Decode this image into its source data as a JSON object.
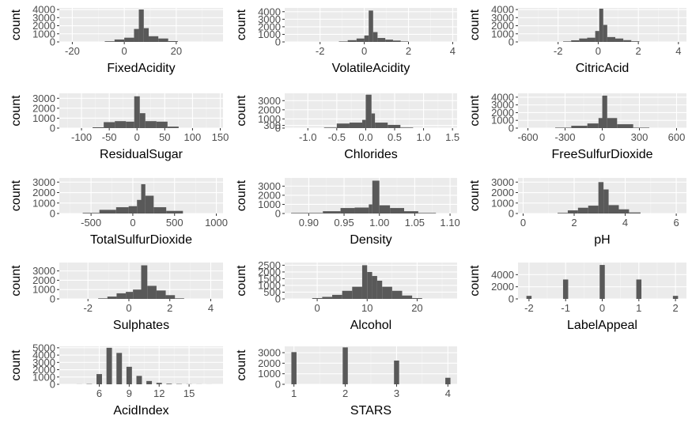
{
  "colors": {
    "panel_bg": "#ebebeb",
    "grid_major": "#ffffff",
    "bar": "#595959",
    "tick_text": "#4d4d4d",
    "axis_text": "#000000"
  },
  "chart_data": [
    {
      "type": "bar",
      "xlabel": "FixedAcidity",
      "ylabel": "count",
      "grid": true,
      "xlim": [
        -25,
        38
      ],
      "ylim": [
        0,
        4200
      ],
      "xticks": [
        "-20",
        "0",
        "20"
      ],
      "yticks": [
        "0",
        "1000",
        "2000",
        "3000",
        "4000"
      ],
      "bin_edges": [
        -7.5,
        -3.75,
        0,
        3.75,
        5.6,
        7.5,
        9.4,
        13.1,
        16.9,
        20.6
      ],
      "values": [
        80,
        300,
        520,
        1600,
        4000,
        1700,
        700,
        420,
        100
      ]
    },
    {
      "type": "bar",
      "xlabel": "VolatileAcidity",
      "ylabel": "count",
      "grid": true,
      "xlim": [
        -3.6,
        4.2
      ],
      "ylim": [
        0,
        4500
      ],
      "xticks": [
        "-2",
        "0",
        "2",
        "4"
      ],
      "yticks": [
        "0",
        "1000",
        "2000",
        "3000",
        "4000"
      ],
      "bin_edges": [
        -1.15,
        -0.75,
        -0.35,
        0,
        0.2,
        0.4,
        0.6,
        0.95,
        1.3,
        1.65,
        2.0
      ],
      "values": [
        60,
        230,
        450,
        850,
        4150,
        1300,
        520,
        300,
        180,
        60
      ]
    },
    {
      "type": "bar",
      "xlabel": "CitricAcid",
      "ylabel": "count",
      "grid": true,
      "xlim": [
        -4,
        4.4
      ],
      "ylim": [
        0,
        4200
      ],
      "xticks": [
        "-2",
        "0",
        "2",
        "4"
      ],
      "yticks": [
        "0",
        "1000",
        "2000",
        "3000",
        "4000"
      ],
      "bin_edges": [
        -1.75,
        -1.35,
        -0.95,
        -0.55,
        -0.15,
        0.05,
        0.25,
        0.45,
        0.85,
        1.25,
        1.65,
        2.05
      ],
      "values": [
        60,
        200,
        420,
        520,
        1350,
        4100,
        2100,
        600,
        420,
        220,
        80
      ]
    },
    {
      "type": "bar",
      "xlabel": "ResidualSugar",
      "ylabel": "count",
      "grid": true,
      "xlim": [
        -140,
        155
      ],
      "ylim": [
        0,
        3500
      ],
      "xticks": [
        "-100",
        "-50",
        "0",
        "50",
        "100",
        "150"
      ],
      "yticks": [
        "0",
        "1000",
        "2000",
        "3000"
      ],
      "bin_edges": [
        -80,
        -60,
        -40,
        -20,
        -5,
        5,
        15,
        35,
        55,
        75
      ],
      "values": [
        80,
        600,
        700,
        650,
        3200,
        1500,
        700,
        650,
        150
      ]
    },
    {
      "type": "bar",
      "xlabel": "Chlorides",
      "ylabel": "count",
      "grid": true,
      "xlim": [
        -1.4,
        1.58
      ],
      "ylim": [
        0,
        3800
      ],
      "xticks": [
        "-1.0",
        "-0.5",
        "0.0",
        "0.5",
        "1.0",
        "1.5"
      ],
      "yticks": [
        "0",
        "300",
        "1000",
        "2000",
        "3000"
      ],
      "bin_edges": [
        -0.72,
        -0.5,
        -0.28,
        -0.06,
        0,
        0.1,
        0.16,
        0.38,
        0.6,
        0.82
      ],
      "values": [
        60,
        500,
        600,
        900,
        3650,
        1600,
        600,
        350,
        60
      ]
    },
    {
      "type": "bar",
      "xlabel": "FreeSulfurDioxide",
      "ylabel": "count",
      "grid": true,
      "xlim": [
        -680,
        680
      ],
      "ylim": [
        0,
        4500
      ],
      "xticks": [
        "-600",
        "-300",
        "0",
        "300",
        "600"
      ],
      "yticks": [
        "0",
        "1000",
        "2000",
        "3000",
        "4000"
      ],
      "bin_edges": [
        -380,
        -250,
        -120,
        -30,
        0,
        40,
        120,
        250,
        380
      ],
      "values": [
        60,
        300,
        600,
        1300,
        4200,
        1300,
        500,
        60
      ]
    },
    {
      "type": "bar",
      "xlabel": "TotalSulfurDioxide",
      "ylabel": "count",
      "grid": true,
      "xlim": [
        -880,
        1080
      ],
      "ylim": [
        0,
        3400
      ],
      "xticks": [
        "-500",
        "0",
        "500",
        "1000"
      ],
      "yticks": [
        "0",
        "1000",
        "2000",
        "3000"
      ],
      "bin_edges": [
        -600,
        -400,
        -200,
        -50,
        50,
        100,
        150,
        250,
        400,
        600
      ],
      "values": [
        60,
        350,
        600,
        700,
        1300,
        2800,
        1700,
        600,
        250
      ]
    },
    {
      "type": "bar",
      "xlabel": "Density",
      "ylabel": "count",
      "grid": true,
      "xlim": [
        0.866,
        1.11
      ],
      "ylim": [
        0,
        3900
      ],
      "xticks": [
        "0.90",
        "0.95",
        "1.00",
        "1.05",
        "1.10"
      ],
      "yticks": [
        "0",
        "1000",
        "2000",
        "3000"
      ],
      "bin_edges": [
        0.875,
        0.92,
        0.945,
        0.965,
        0.985,
        0.99,
        1.0,
        1.015,
        1.035,
        1.055,
        1.08
      ],
      "values": [
        60,
        250,
        600,
        650,
        1000,
        3600,
        900,
        600,
        250,
        60
      ]
    },
    {
      "type": "bar",
      "xlabel": "pH",
      "ylabel": "count",
      "grid": true,
      "xlim": [
        -0.2,
        6.4
      ],
      "ylim": [
        0,
        3400
      ],
      "xticks": [
        "0",
        "2",
        "4",
        "6"
      ],
      "yticks": [
        "0",
        "1000",
        "2000",
        "3000"
      ],
      "bin_edges": [
        1.35,
        1.75,
        2.15,
        2.55,
        2.95,
        3.15,
        3.35,
        3.75,
        4.15,
        4.6
      ],
      "values": [
        60,
        300,
        550,
        750,
        3000,
        2300,
        800,
        400,
        100
      ]
    },
    {
      "type": "bar",
      "xlabel": "Sulphates",
      "ylabel": "count",
      "grid": true,
      "xlim": [
        -3.4,
        4.6
      ],
      "ylim": [
        0,
        3900
      ],
      "xticks": [
        "-2",
        "0",
        "2",
        "4"
      ],
      "yticks": [
        "0",
        "1000",
        "2000",
        "3000"
      ],
      "bin_edges": [
        -1.5,
        -1.05,
        -0.6,
        -0.15,
        0.2,
        0.6,
        0.9,
        1.35,
        1.8,
        2.25,
        2.7
      ],
      "values": [
        60,
        250,
        600,
        750,
        1000,
        3600,
        1400,
        900,
        400,
        60
      ]
    },
    {
      "type": "bar",
      "xlabel": "Alcohol",
      "ylabel": "count",
      "grid": true,
      "xlim": [
        -6.5,
        28
      ],
      "ylim": [
        0,
        2700
      ],
      "xticks": [
        "0",
        "10",
        "20"
      ],
      "yticks": [
        "0",
        "500",
        "1000",
        "1500",
        "2000",
        "2500"
      ],
      "bin_edges": [
        -1,
        1,
        3,
        5,
        7,
        9,
        10,
        11,
        12,
        13,
        15,
        17,
        19,
        21
      ],
      "values": [
        60,
        150,
        300,
        600,
        900,
        2500,
        2000,
        1700,
        1350,
        900,
        600,
        250,
        60
      ]
    },
    {
      "type": "bar",
      "xlabel": "LabelAppeal",
      "ylabel": "count",
      "grid": true,
      "xlim": [
        -2.3,
        2.3
      ],
      "ylim": [
        0,
        6000
      ],
      "xticks": [
        "-2",
        "-1",
        "0",
        "1",
        "2"
      ],
      "yticks": [
        "0",
        "2000",
        "4000"
      ],
      "x": [
        -2,
        -1,
        0,
        1,
        2
      ],
      "bar_width": 0.14,
      "values": [
        500,
        3200,
        5600,
        3200,
        500
      ]
    },
    {
      "type": "bar",
      "xlabel": "AcidIndex",
      "ylabel": "count",
      "grid": true,
      "xlim": [
        2,
        18.4
      ],
      "ylim": [
        0,
        5200
      ],
      "xticks": [
        "6",
        "9",
        "12",
        "15"
      ],
      "yticks": [
        "0",
        "1000",
        "2000",
        "3000",
        "4000",
        "5000"
      ],
      "x": [
        4,
        5,
        6,
        7,
        8,
        9,
        10,
        11,
        12,
        13,
        14,
        15,
        16,
        17
      ],
      "bar_width": 0.55,
      "values": [
        10,
        40,
        1400,
        5000,
        4300,
        2400,
        1150,
        450,
        200,
        80,
        40,
        20,
        10,
        5
      ]
    },
    {
      "type": "bar",
      "xlabel": "STARS",
      "ylabel": "count",
      "grid": true,
      "xlim": [
        0.82,
        4.18
      ],
      "ylim": [
        0,
        3600
      ],
      "xticks": [
        "1",
        "2",
        "3",
        "4"
      ],
      "yticks": [
        "0",
        "1000",
        "2000",
        "3000"
      ],
      "x": [
        1,
        2,
        3,
        4
      ],
      "bar_width": 0.1,
      "values": [
        3050,
        3500,
        2250,
        620
      ]
    }
  ]
}
